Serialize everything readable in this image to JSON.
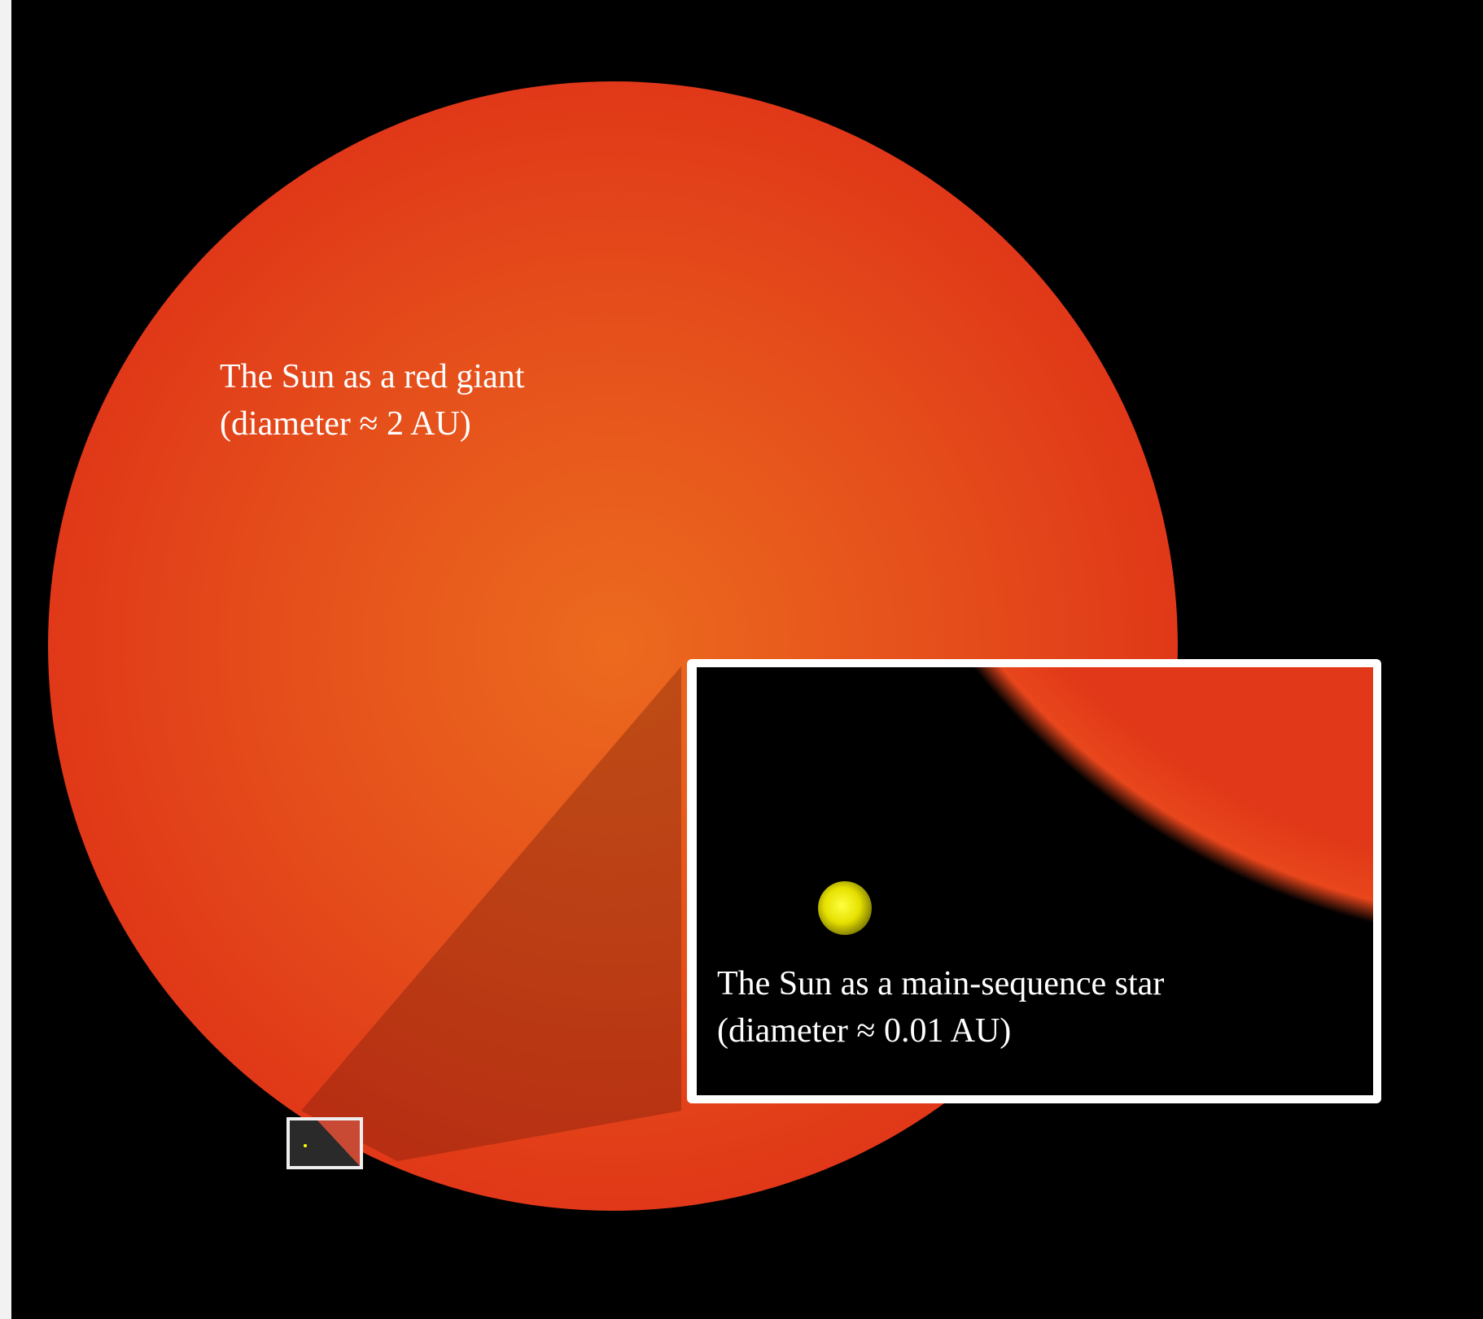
{
  "red_giant": {
    "label": "The Sun as a red giant",
    "diameter": "(diameter ≈ 2 AU)"
  },
  "main_sequence": {
    "label": "The Sun as a main-sequence star",
    "diameter": "(diameter ≈ 0.01 AU)"
  }
}
